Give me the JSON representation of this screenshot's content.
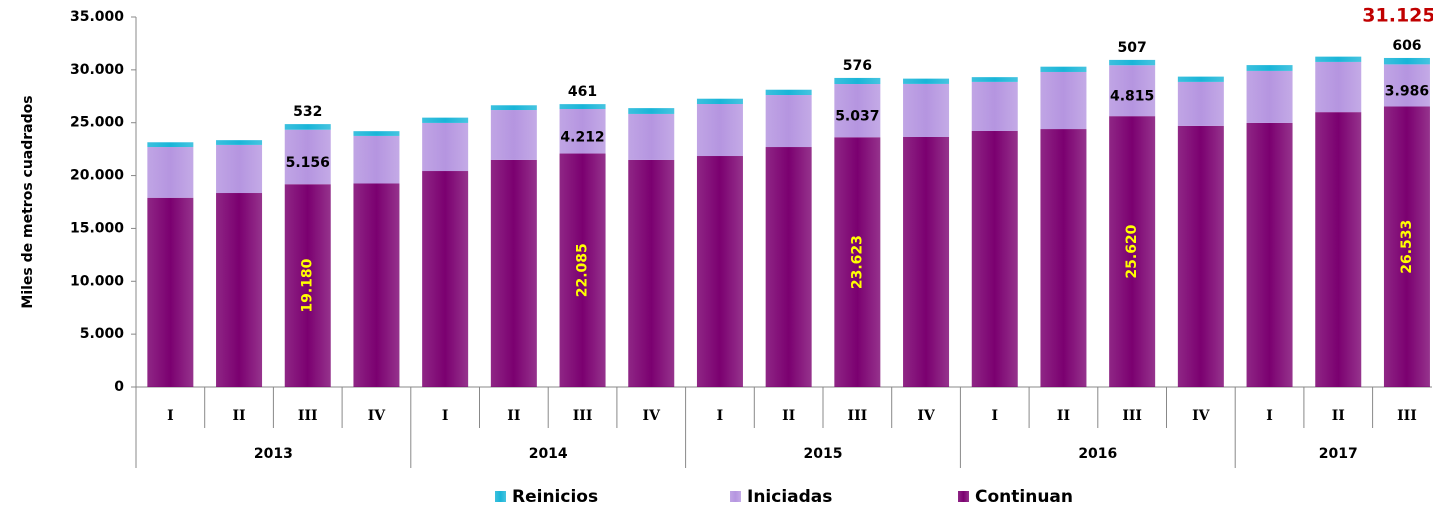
{
  "chart_data": {
    "type": "stacked-bar",
    "y_label": "Miles de metros cuadrados",
    "annotation": "31.125",
    "annotation_color": "#c00000",
    "groups": [
      {
        "name": "2013",
        "categories": [
          "I",
          "II",
          "III",
          "IV"
        ]
      },
      {
        "name": "2014",
        "categories": [
          "I",
          "II",
          "III",
          "IV"
        ]
      },
      {
        "name": "2015",
        "categories": [
          "I",
          "II",
          "III",
          "IV"
        ]
      },
      {
        "name": "2016",
        "categories": [
          "I",
          "II",
          "III",
          "IV"
        ]
      },
      {
        "name": "2017",
        "categories": [
          "I",
          "II",
          "III"
        ]
      }
    ],
    "series": [
      {
        "name": "Continuan",
        "color": "#7b0070",
        "label_color": "#ffff00",
        "values": [
          17900,
          18350,
          19180,
          19250,
          20430,
          21480,
          22085,
          21480,
          21850,
          22700,
          23623,
          23650,
          24220,
          24400,
          25620,
          24700,
          24980,
          26000,
          26533
        ],
        "value_labels": [
          null,
          null,
          "19.180",
          null,
          null,
          null,
          "22.085",
          null,
          null,
          null,
          "23.623",
          null,
          null,
          null,
          "25.620",
          null,
          null,
          null,
          "26.533"
        ]
      },
      {
        "name": "Iniciadas",
        "color": "#b595e0",
        "label_color": "#000000",
        "values": [
          4800,
          4550,
          5156,
          4500,
          4550,
          4720,
          4212,
          4350,
          4920,
          4920,
          5037,
          5020,
          4640,
          5400,
          4815,
          4160,
          4920,
          4750,
          3986
        ],
        "value_labels": [
          null,
          null,
          "5.156",
          null,
          null,
          null,
          "4.212",
          null,
          null,
          null,
          "5.037",
          null,
          null,
          null,
          "4.815",
          null,
          null,
          null,
          "3.986"
        ]
      },
      {
        "name": "Reinicios",
        "color": "#19b5d8",
        "label_color": "#000000",
        "values": [
          450,
          450,
          532,
          450,
          500,
          450,
          461,
          550,
          500,
          500,
          576,
          500,
          450,
          500,
          507,
          500,
          550,
          500,
          606
        ]
      }
    ],
    "ylim": [
      0,
      35000
    ],
    "yticks": [
      0,
      {
        "value": 5000,
        "label": "5.000"
      },
      {
        "value": 10000,
        "label": "10.000"
      },
      {
        "value": 15000,
        "label": "15.000"
      },
      {
        "value": 20000,
        "label": "20.000"
      },
      {
        "value": 25000,
        "label": "25.000"
      },
      {
        "value": 30000,
        "label": "30.000"
      },
      {
        "value": 35000,
        "label": "35.000"
      }
    ],
    "legend": "bottom"
  }
}
